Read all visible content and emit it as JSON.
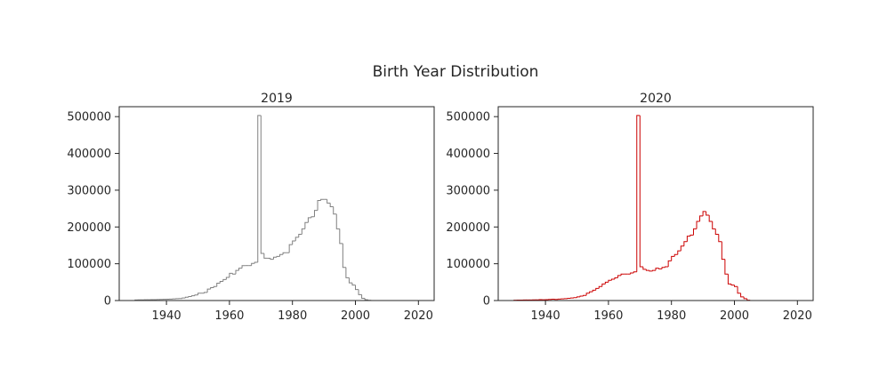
{
  "figure": {
    "title": "Birth Year Distribution"
  },
  "chart_data": [
    {
      "type": "histogram",
      "title": "2019",
      "color": "#808080",
      "xlabel": "",
      "ylabel": "",
      "xlim": [
        1925,
        2025
      ],
      "ylim": [
        0,
        527000
      ],
      "xticks": [
        "1940",
        "1960",
        "1980",
        "2000",
        "2020"
      ],
      "yticks": [
        "0",
        "100000",
        "200000",
        "300000",
        "400000",
        "500000"
      ],
      "bin_width": 1,
      "x": [
        1930,
        1931,
        1932,
        1933,
        1934,
        1935,
        1936,
        1937,
        1938,
        1939,
        1940,
        1941,
        1942,
        1943,
        1944,
        1945,
        1946,
        1947,
        1948,
        1949,
        1950,
        1951,
        1952,
        1953,
        1954,
        1955,
        1956,
        1957,
        1958,
        1959,
        1960,
        1961,
        1962,
        1963,
        1964,
        1965,
        1966,
        1967,
        1968,
        1969,
        1970,
        1971,
        1972,
        1973,
        1974,
        1975,
        1976,
        1977,
        1978,
        1979,
        1980,
        1981,
        1982,
        1983,
        1984,
        1985,
        1986,
        1987,
        1988,
        1989,
        1990,
        1991,
        1992,
        1993,
        1994,
        1995,
        1996,
        1997,
        1998,
        1999,
        2000,
        2001,
        2002,
        2003,
        2004,
        2005
      ],
      "values": [
        1500,
        1700,
        1800,
        2000,
        2200,
        2300,
        2500,
        2700,
        2900,
        3200,
        3500,
        4000,
        4500,
        5000,
        5500,
        7000,
        9000,
        11000,
        13000,
        15000,
        20000,
        20000,
        22000,
        31000,
        35000,
        38000,
        47000,
        52000,
        57000,
        63000,
        74000,
        72000,
        82000,
        88000,
        95000,
        95000,
        95000,
        101000,
        104000,
        503000,
        128000,
        115000,
        115000,
        112000,
        118000,
        120000,
        125000,
        130000,
        130000,
        152000,
        162000,
        172000,
        180000,
        195000,
        212000,
        225000,
        228000,
        245000,
        272000,
        275000,
        275000,
        265000,
        255000,
        235000,
        195000,
        155000,
        90000,
        62000,
        48000,
        42000,
        30000,
        16000,
        6000,
        2000,
        500,
        0
      ]
    },
    {
      "type": "histogram",
      "title": "2020",
      "color": "#cc0000",
      "xlabel": "",
      "ylabel": "",
      "xlim": [
        1925,
        2025
      ],
      "ylim": [
        0,
        527000
      ],
      "xticks": [
        "1940",
        "1960",
        "1980",
        "2000",
        "2020"
      ],
      "yticks": [
        "0",
        "100000",
        "200000",
        "300000",
        "400000",
        "500000"
      ],
      "bin_width": 1,
      "x": [
        1930,
        1931,
        1932,
        1933,
        1934,
        1935,
        1936,
        1937,
        1938,
        1939,
        1940,
        1941,
        1942,
        1943,
        1944,
        1945,
        1946,
        1947,
        1948,
        1949,
        1950,
        1951,
        1952,
        1953,
        1954,
        1955,
        1956,
        1957,
        1958,
        1959,
        1960,
        1961,
        1962,
        1963,
        1964,
        1965,
        1966,
        1967,
        1968,
        1969,
        1970,
        1971,
        1972,
        1973,
        1974,
        1975,
        1976,
        1977,
        1978,
        1979,
        1980,
        1981,
        1982,
        1983,
        1984,
        1985,
        1986,
        1987,
        1988,
        1989,
        1990,
        1991,
        1992,
        1993,
        1994,
        1995,
        1996,
        1997,
        1998,
        1999,
        2000,
        2001,
        2002,
        2003,
        2004,
        2005
      ],
      "values": [
        1000,
        1200,
        1300,
        1400,
        1500,
        1600,
        1700,
        1800,
        2500,
        2000,
        2500,
        3000,
        3500,
        3000,
        4000,
        4500,
        5000,
        6000,
        7000,
        8000,
        10000,
        12000,
        14000,
        20000,
        24000,
        28000,
        33000,
        38000,
        45000,
        50000,
        55000,
        58000,
        62000,
        68000,
        72000,
        72000,
        72000,
        75000,
        78000,
        503000,
        92000,
        85000,
        82000,
        80000,
        82000,
        88000,
        86000,
        90000,
        92000,
        108000,
        120000,
        125000,
        135000,
        148000,
        160000,
        175000,
        178000,
        195000,
        215000,
        230000,
        242000,
        232000,
        215000,
        195000,
        180000,
        160000,
        112000,
        72000,
        45000,
        42000,
        38000,
        20000,
        10000,
        5000,
        1000,
        0
      ]
    }
  ]
}
